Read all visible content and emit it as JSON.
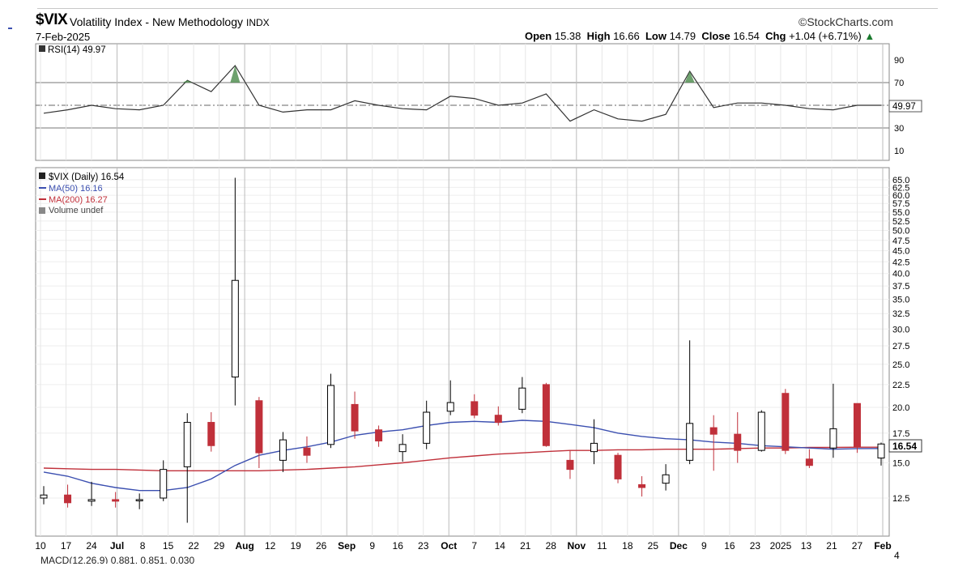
{
  "header": {
    "symbol": "$VIX",
    "description": "Volatility Index - New Methodology",
    "exchange": "INDX",
    "date": "7-Feb-2025",
    "brand": "©StockCharts.com",
    "open_label": "Open",
    "open": "15.38",
    "high_label": "High",
    "high": "16.66",
    "low_label": "Low",
    "low": "14.79",
    "close_label": "Close",
    "close": "16.54",
    "chg_label": "Chg",
    "chg": "+1.04 (+6.71%)",
    "chg_icon": "up-triangle-icon",
    "up_color": "#1a7a2e"
  },
  "rsi_panel": {
    "legend": "RSI(14) 49.97",
    "last_value_badge": "49.97"
  },
  "price_panel": {
    "legend_price": "$VIX (Daily) 16.54",
    "legend_ma50": "MA(50) 16.16",
    "legend_ma200": "MA(200) 16.27",
    "legend_volume": "Volume undef",
    "last_price_badge": "16.54",
    "ma50_color": "#3b4fb0",
    "ma200_color": "#c0303a",
    "down_candle_color": "#c0303a",
    "up_candle_color": "#000000"
  },
  "macd_panel": {
    "legend_partial": "MACD(12,26,9) 0.881, 0.851, 0.030",
    "axis_tick_partial": "4"
  },
  "chart_data": [
    {
      "type": "line",
      "name": "RSI(14)",
      "ylim": [
        0,
        100
      ],
      "yticks": [
        "90",
        "70",
        "30",
        "10"
      ],
      "reference_lines": [
        70,
        50,
        30
      ],
      "x": [
        "Jun 10",
        "Jun 17",
        "Jun 24",
        "Jul 1",
        "Jul 8",
        "Jul 15",
        "Jul 22",
        "Jul 29",
        "Aug 5",
        "Aug 12",
        "Aug 19",
        "Aug 26",
        "Sep 2",
        "Sep 9",
        "Sep 16",
        "Sep 23",
        "Sep 30",
        "Oct 7",
        "Oct 14",
        "Oct 21",
        "Oct 28",
        "Nov 4",
        "Nov 11",
        "Nov 18",
        "Nov 25",
        "Dec 2",
        "Dec 9",
        "Dec 16",
        "Dec 23",
        "Dec 30",
        "Jan 6",
        "Jan 13",
        "Jan 21",
        "Jan 27",
        "Feb 3",
        "Feb 7"
      ],
      "values": [
        43,
        46,
        50,
        47,
        46,
        50,
        72,
        62,
        85,
        50,
        44,
        46,
        46,
        54,
        50,
        47,
        46,
        58,
        56,
        50,
        52,
        60,
        36,
        46,
        38,
        36,
        42,
        80,
        48,
        52,
        52,
        50,
        47,
        46,
        50,
        50
      ]
    },
    {
      "type": "candlestick",
      "title": "$VIX (Daily) 16.54",
      "ylim": [
        10,
        66
      ],
      "yticks": [
        "65.0",
        "62.5",
        "60.0",
        "57.5",
        "55.0",
        "52.5",
        "50.0",
        "47.5",
        "45.0",
        "42.5",
        "40.0",
        "37.5",
        "35.0",
        "32.5",
        "30.0",
        "27.5",
        "25.0",
        "22.5",
        "20.0",
        "17.5",
        "15.0",
        "12.5"
      ],
      "xticks": [
        "10",
        "17",
        "24",
        "Jul",
        "8",
        "15",
        "22",
        "29",
        "Aug",
        "12",
        "19",
        "26",
        "Sep",
        "9",
        "16",
        "23",
        "Oct",
        "7",
        "14",
        "21",
        "28",
        "Nov",
        "11",
        "18",
        "25",
        "Dec",
        "9",
        "16",
        "23",
        "2025",
        "13",
        "21",
        "27",
        "Feb"
      ],
      "candles": [
        {
          "d": "Jun 10",
          "o": 12.5,
          "h": 13.3,
          "l": 12.1,
          "c": 12.7
        },
        {
          "d": "Jun 17",
          "o": 12.7,
          "h": 13.4,
          "l": 11.9,
          "c": 12.2
        },
        {
          "d": "Jun 24",
          "o": 12.3,
          "h": 13.6,
          "l": 12.0,
          "c": 12.4
        },
        {
          "d": "Jul 1",
          "o": 12.4,
          "h": 12.9,
          "l": 11.9,
          "c": 12.3
        },
        {
          "d": "Jul 8",
          "o": 12.4,
          "h": 12.8,
          "l": 11.8,
          "c": 12.4
        },
        {
          "d": "Jul 15",
          "o": 12.5,
          "h": 15.2,
          "l": 12.3,
          "c": 14.5
        },
        {
          "d": "Jul 22",
          "o": 14.7,
          "h": 19.4,
          "l": 11.0,
          "c": 18.5
        },
        {
          "d": "Jul 29",
          "o": 18.5,
          "h": 19.5,
          "l": 15.9,
          "c": 16.4
        },
        {
          "d": "Aug 5",
          "o": 23.4,
          "h": 65.7,
          "l": 20.2,
          "c": 38.6
        },
        {
          "d": "Aug 12",
          "o": 20.7,
          "h": 21.1,
          "l": 14.6,
          "c": 15.8
        },
        {
          "d": "Aug 19",
          "o": 15.2,
          "h": 17.6,
          "l": 14.3,
          "c": 16.9
        },
        {
          "d": "Aug 26",
          "o": 16.2,
          "h": 17.2,
          "l": 15.0,
          "c": 15.6
        },
        {
          "d": "Sep 2",
          "o": 16.5,
          "h": 23.8,
          "l": 16.2,
          "c": 22.4
        },
        {
          "d": "Sep 9",
          "o": 20.3,
          "h": 21.7,
          "l": 17.0,
          "c": 17.7
        },
        {
          "d": "Sep 16",
          "o": 17.8,
          "h": 18.2,
          "l": 16.3,
          "c": 16.8
        },
        {
          "d": "Sep 23",
          "o": 15.9,
          "h": 17.4,
          "l": 15.1,
          "c": 16.5
        },
        {
          "d": "Sep 30",
          "o": 16.6,
          "h": 20.7,
          "l": 16.1,
          "c": 19.5
        },
        {
          "d": "Oct 7",
          "o": 19.6,
          "h": 23.0,
          "l": 19.2,
          "c": 20.5
        },
        {
          "d": "Oct 14",
          "o": 20.6,
          "h": 21.4,
          "l": 18.9,
          "c": 19.2
        },
        {
          "d": "Oct 21",
          "o": 19.2,
          "h": 20.1,
          "l": 18.2,
          "c": 18.5
        },
        {
          "d": "Oct 28",
          "o": 19.8,
          "h": 23.4,
          "l": 19.4,
          "c": 22.1
        },
        {
          "d": "Nov 4",
          "o": 22.5,
          "h": 22.7,
          "l": 16.3,
          "c": 16.4
        },
        {
          "d": "Nov 11",
          "o": 15.2,
          "h": 16.0,
          "l": 13.8,
          "c": 14.5
        },
        {
          "d": "Nov 18",
          "o": 15.9,
          "h": 18.8,
          "l": 14.9,
          "c": 16.6
        },
        {
          "d": "Nov 25",
          "o": 15.6,
          "h": 15.8,
          "l": 13.5,
          "c": 13.8
        },
        {
          "d": "Dec 2",
          "o": 13.4,
          "h": 14.0,
          "l": 12.6,
          "c": 13.2
        },
        {
          "d": "Dec 9",
          "o": 13.5,
          "h": 14.9,
          "l": 13.0,
          "c": 14.1
        },
        {
          "d": "Dec 16",
          "o": 15.2,
          "h": 28.3,
          "l": 14.9,
          "c": 18.4
        },
        {
          "d": "Dec 23",
          "o": 18.0,
          "h": 19.2,
          "l": 14.4,
          "c": 17.4
        },
        {
          "d": "Dec 30",
          "o": 17.4,
          "h": 19.5,
          "l": 15.0,
          "c": 16.0
        },
        {
          "d": "Jan 6",
          "o": 16.0,
          "h": 19.7,
          "l": 15.9,
          "c": 19.5
        },
        {
          "d": "Jan 13",
          "o": 21.5,
          "h": 22.0,
          "l": 15.7,
          "c": 16.0
        },
        {
          "d": "Jan 21",
          "o": 15.3,
          "h": 16.1,
          "l": 14.6,
          "c": 14.8
        },
        {
          "d": "Jan 27",
          "o": 16.2,
          "h": 22.6,
          "l": 15.4,
          "c": 17.9
        },
        {
          "d": "Feb 3",
          "o": 20.4,
          "h": 20.4,
          "l": 15.8,
          "c": 16.3
        },
        {
          "d": "Feb 7",
          "o": 15.38,
          "h": 16.66,
          "l": 14.79,
          "c": 16.54
        }
      ],
      "ma50": [
        14.3,
        14.0,
        13.5,
        13.2,
        13.0,
        13.0,
        13.2,
        13.8,
        14.8,
        15.6,
        16.0,
        16.3,
        16.7,
        17.3,
        17.6,
        17.8,
        18.2,
        18.5,
        18.6,
        18.5,
        18.7,
        18.6,
        18.3,
        18.0,
        17.5,
        17.2,
        17.0,
        16.9,
        16.7,
        16.6,
        16.4,
        16.3,
        16.2,
        16.1,
        16.15,
        16.16
      ],
      "ma200": [
        14.6,
        14.55,
        14.5,
        14.5,
        14.45,
        14.4,
        14.4,
        14.4,
        14.4,
        14.4,
        14.45,
        14.5,
        14.6,
        14.7,
        14.85,
        15.0,
        15.2,
        15.4,
        15.55,
        15.7,
        15.8,
        15.9,
        16.0,
        16.0,
        16.05,
        16.05,
        16.1,
        16.1,
        16.1,
        16.15,
        16.2,
        16.2,
        16.25,
        16.25,
        16.27,
        16.27
      ]
    }
  ]
}
